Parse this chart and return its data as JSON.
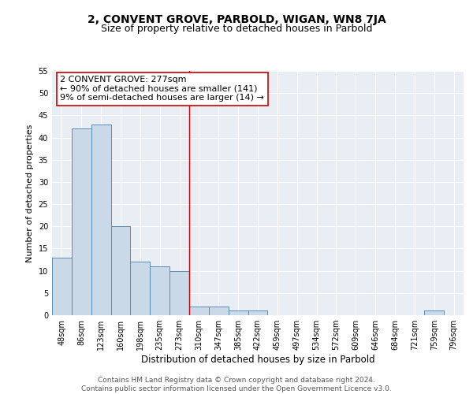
{
  "title": "2, CONVENT GROVE, PARBOLD, WIGAN, WN8 7JA",
  "subtitle": "Size of property relative to detached houses in Parbold",
  "xlabel": "Distribution of detached houses by size in Parbold",
  "ylabel": "Number of detached properties",
  "bin_labels": [
    "48sqm",
    "86sqm",
    "123sqm",
    "160sqm",
    "198sqm",
    "235sqm",
    "273sqm",
    "310sqm",
    "347sqm",
    "385sqm",
    "422sqm",
    "459sqm",
    "497sqm",
    "534sqm",
    "572sqm",
    "609sqm",
    "646sqm",
    "684sqm",
    "721sqm",
    "759sqm",
    "796sqm"
  ],
  "bar_heights": [
    13,
    42,
    43,
    20,
    12,
    11,
    10,
    2,
    2,
    1,
    1,
    0,
    0,
    0,
    0,
    0,
    0,
    0,
    0,
    1,
    0
  ],
  "bar_color": "#c9d9e8",
  "bar_edge_color": "#5b8db8",
  "background_color": "#e8eef4",
  "grid_color": "#ffffff",
  "vline_x_idx": 6.5,
  "vline_color": "#cc0000",
  "annotation_text": "2 CONVENT GROVE: 277sqm\n← 90% of detached houses are smaller (141)\n9% of semi-detached houses are larger (14) →",
  "annotation_box_color": "#ffffff",
  "annotation_box_edge_color": "#cc0000",
  "ylim": [
    0,
    55
  ],
  "yticks": [
    0,
    5,
    10,
    15,
    20,
    25,
    30,
    35,
    40,
    45,
    50,
    55
  ],
  "footer_text": "Contains HM Land Registry data © Crown copyright and database right 2024.\nContains public sector information licensed under the Open Government Licence v3.0.",
  "title_fontsize": 10,
  "subtitle_fontsize": 9,
  "xlabel_fontsize": 8.5,
  "ylabel_fontsize": 8,
  "tick_fontsize": 7,
  "annotation_fontsize": 8,
  "footer_fontsize": 6.5
}
